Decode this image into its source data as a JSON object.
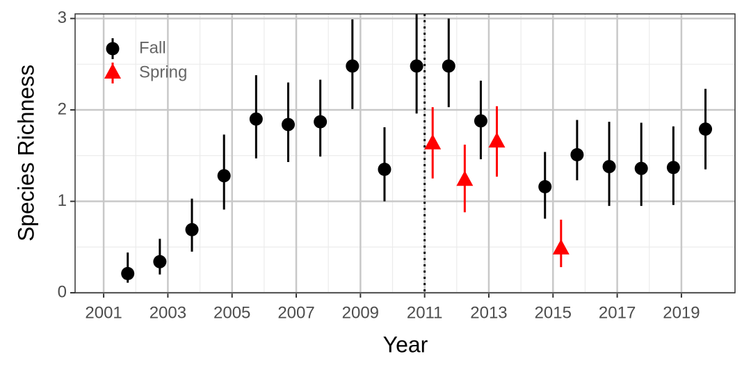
{
  "chart_data": {
    "type": "errorpoint",
    "xlabel": "Year",
    "ylabel": "Species Richness",
    "xlim": [
      2000.11,
      2020.67
    ],
    "ylim": [
      0,
      3.05
    ],
    "xticks": [
      2001,
      2003,
      2005,
      2007,
      2009,
      2011,
      2013,
      2015,
      2017,
      2019
    ],
    "yticks": [
      0,
      1,
      2,
      3
    ],
    "grid": true,
    "minor_grid": true,
    "vline": 2011,
    "legend": "top-left",
    "series": [
      {
        "name": "Fall",
        "color": "#000000",
        "marker": "circle",
        "x": [
          2001.75,
          2002.75,
          2003.75,
          2004.75,
          2005.75,
          2006.75,
          2007.75,
          2008.75,
          2009.75,
          2010.75,
          2011.75,
          2012.75,
          2014.75,
          2015.75,
          2016.75,
          2017.75,
          2018.75,
          2019.75
        ],
        "values": [
          0.21,
          0.34,
          0.69,
          1.28,
          1.9,
          1.84,
          1.87,
          2.48,
          1.35,
          2.48,
          2.48,
          1.88,
          1.16,
          1.51,
          1.38,
          1.36,
          1.37,
          1.79
        ],
        "lower": [
          0.11,
          0.2,
          0.45,
          0.91,
          1.47,
          1.43,
          1.49,
          2.01,
          1.0,
          1.96,
          2.03,
          1.46,
          0.81,
          1.23,
          0.95,
          0.95,
          0.96,
          1.35
        ],
        "upper": [
          0.44,
          0.59,
          1.03,
          1.73,
          2.38,
          2.3,
          2.33,
          2.99,
          1.81,
          3.05,
          3.0,
          2.32,
          1.54,
          1.89,
          1.87,
          1.86,
          1.82,
          2.23
        ]
      },
      {
        "name": "Spring",
        "color": "#ff0000",
        "marker": "triangle",
        "x": [
          2011.25,
          2012.25,
          2013.25,
          2015.25
        ],
        "values": [
          1.63,
          1.23,
          1.65,
          0.48
        ],
        "lower": [
          1.25,
          0.88,
          1.27,
          0.28
        ],
        "upper": [
          2.03,
          1.62,
          2.04,
          0.8
        ]
      }
    ]
  }
}
